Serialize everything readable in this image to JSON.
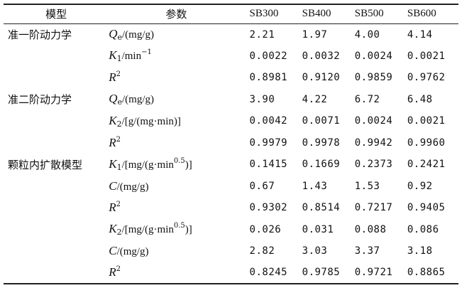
{
  "header": {
    "model": "模型",
    "param": "参数",
    "samples": [
      "SB300",
      "SB400",
      "SB500",
      "SB600"
    ]
  },
  "rows": [
    {
      "model": "准一阶动力学",
      "sym": "Q",
      "sub": "e",
      "sup": "",
      "unit": "/(mg/g)",
      "values": [
        "2.21",
        "1.97",
        "4.00",
        "4.14"
      ]
    },
    {
      "model": "",
      "sym": "K",
      "sub": "1",
      "sup": "",
      "unit": "/min",
      "unit_sup": "−1",
      "values": [
        "0.0022",
        "0.0032",
        "0.0024",
        "0.0021"
      ]
    },
    {
      "model": "",
      "sym": "R",
      "sub": "",
      "sup": "2",
      "unit": "",
      "values": [
        "0.8981",
        "0.9120",
        "0.9859",
        "0.9762"
      ]
    },
    {
      "model": "准二阶动力学",
      "sym": "Q",
      "sub": "e",
      "sup": "",
      "unit": "/(mg/g)",
      "values": [
        "3.90",
        "4.22",
        "6.72",
        "6.48"
      ]
    },
    {
      "model": "",
      "sym": "K",
      "sub": "2",
      "sup": "",
      "unit": "/[g/(mg·min)]",
      "values": [
        "0.0042",
        "0.0071",
        "0.0024",
        "0.0021"
      ]
    },
    {
      "model": "",
      "sym": "R",
      "sub": "",
      "sup": "2",
      "unit": "",
      "values": [
        "0.9979",
        "0.9978",
        "0.9942",
        "0.9960"
      ]
    },
    {
      "model": "颗粒内扩散模型",
      "sym": "K",
      "sub": "1",
      "sup": "",
      "unit": "/[mg/(g·min",
      "unit_sup": "0.5",
      "unit_tail": ")]",
      "values": [
        "0.1415",
        "0.1669",
        "0.2373",
        "0.2421"
      ]
    },
    {
      "model": "",
      "sym": "C",
      "sub": "",
      "sup": "",
      "unit": "/(mg/g)",
      "values": [
        "0.67",
        "1.43",
        "1.53",
        "0.92"
      ]
    },
    {
      "model": "",
      "sym": "R",
      "sub": "",
      "sup": "2",
      "unit": "",
      "values": [
        "0.9302",
        "0.8514",
        "0.7217",
        "0.9405"
      ]
    },
    {
      "model": "",
      "sym": "K",
      "sub": "2",
      "sup": "",
      "unit": "/[mg/(g·min",
      "unit_sup": "0.5",
      "unit_tail": ")]",
      "values": [
        "0.026",
        "0.031",
        "0.088",
        "0.086"
      ]
    },
    {
      "model": "",
      "sym": "C",
      "sub": "",
      "sup": "",
      "unit": "/(mg/g)",
      "values": [
        "2.82",
        "3.03",
        "3.37",
        "3.18"
      ]
    },
    {
      "model": "",
      "sym": "R",
      "sub": "",
      "sup": "2",
      "unit": "",
      "values": [
        "0.8245",
        "0.9785",
        "0.9721",
        "0.8865"
      ]
    }
  ]
}
